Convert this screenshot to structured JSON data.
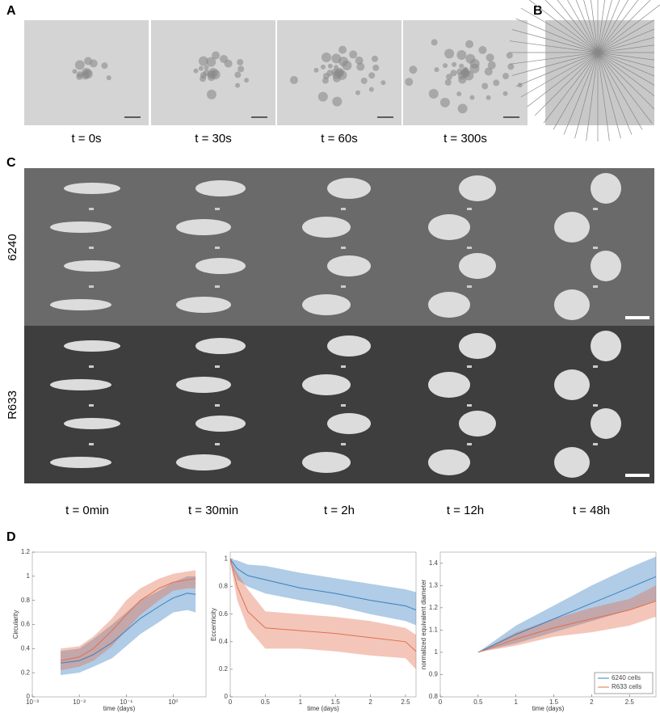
{
  "panels": {
    "A": {
      "label": "A",
      "times": [
        "t = 0s",
        "t = 30s",
        "t = 60s",
        "t = 300s"
      ]
    },
    "B": {
      "label": "B"
    },
    "C": {
      "label": "C",
      "rows": [
        "6240",
        "R633"
      ],
      "times": [
        "t = 0min",
        "t = 30min",
        "t = 2h",
        "t = 12h",
        "t = 48h"
      ]
    },
    "D": {
      "label": "D"
    }
  },
  "chart_data": [
    {
      "type": "line",
      "xlabel": "time (days)",
      "ylabel": "Circularity",
      "xscale": "log",
      "xlim": [
        0.001,
        5
      ],
      "xticks": [
        {
          "value": 0.001,
          "label": "10⁻³"
        },
        {
          "value": 0.01,
          "label": "10⁻²"
        },
        {
          "value": 0.1,
          "label": "10⁻¹"
        },
        {
          "value": 1,
          "label": "10⁰"
        }
      ],
      "ylim": [
        0,
        1.2
      ],
      "yticks": [
        0,
        0.2,
        0.4,
        0.6,
        0.8,
        1,
        1.2
      ],
      "x": [
        0.004,
        0.01,
        0.02,
        0.05,
        0.1,
        0.2,
        0.5,
        1,
        2,
        3
      ],
      "series": [
        {
          "color": "#3a7fc1",
          "values": [
            0.28,
            0.3,
            0.35,
            0.45,
            0.55,
            0.65,
            0.75,
            0.82,
            0.86,
            0.85
          ],
          "lower": [
            0.18,
            0.2,
            0.25,
            0.32,
            0.42,
            0.52,
            0.62,
            0.7,
            0.72,
            0.7
          ],
          "upper": [
            0.38,
            0.4,
            0.48,
            0.6,
            0.7,
            0.8,
            0.88,
            0.95,
            1.0,
            1.0
          ]
        },
        {
          "color": "#e0704f",
          "values": [
            0.3,
            0.33,
            0.4,
            0.55,
            0.68,
            0.8,
            0.9,
            0.95,
            0.97,
            0.98
          ],
          "lower": [
            0.22,
            0.25,
            0.3,
            0.42,
            0.55,
            0.68,
            0.8,
            0.88,
            0.9,
            0.9
          ],
          "upper": [
            0.4,
            0.42,
            0.5,
            0.65,
            0.8,
            0.9,
            0.98,
            1.02,
            1.04,
            1.05
          ]
        }
      ]
    },
    {
      "type": "line",
      "xlabel": "time (days)",
      "ylabel": "Eccentricity",
      "xlim": [
        0,
        2.65
      ],
      "xticks": [
        0,
        0.5,
        1,
        1.5,
        2,
        2.5
      ],
      "ylim": [
        0,
        1.05
      ],
      "yticks": [
        0,
        0.2,
        0.4,
        0.6,
        0.8,
        1
      ],
      "x": [
        0,
        0.1,
        0.25,
        0.5,
        1,
        1.5,
        2,
        2.5,
        2.65
      ],
      "series": [
        {
          "color": "#3a7fc1",
          "values": [
            1.0,
            0.93,
            0.88,
            0.85,
            0.79,
            0.75,
            0.7,
            0.66,
            0.63
          ],
          "lower": [
            0.98,
            0.85,
            0.8,
            0.75,
            0.7,
            0.66,
            0.6,
            0.55,
            0.52
          ],
          "upper": [
            1.0,
            0.99,
            0.96,
            0.95,
            0.9,
            0.86,
            0.82,
            0.78,
            0.76
          ]
        },
        {
          "color": "#e0704f",
          "values": [
            1.0,
            0.8,
            0.62,
            0.5,
            0.48,
            0.46,
            0.43,
            0.4,
            0.33
          ],
          "lower": [
            0.98,
            0.7,
            0.5,
            0.35,
            0.35,
            0.33,
            0.3,
            0.28,
            0.2
          ],
          "upper": [
            1.0,
            0.9,
            0.78,
            0.62,
            0.6,
            0.58,
            0.55,
            0.5,
            0.45
          ]
        }
      ]
    },
    {
      "type": "line",
      "xlabel": "time (days)",
      "ylabel": "normalized equivalent diameter",
      "xlim": [
        0,
        2.85
      ],
      "xticks": [
        0,
        0.5,
        1,
        1.5,
        2,
        2.5
      ],
      "ylim": [
        0.8,
        1.45
      ],
      "yticks": [
        0.8,
        0.9,
        1,
        1.1,
        1.2,
        1.3,
        1.4
      ],
      "legend": "lower right",
      "x": [
        0.5,
        1,
        1.5,
        2,
        2.5,
        2.85
      ],
      "series": [
        {
          "name": "6240 cells",
          "color": "#3a7fc1",
          "values": [
            1,
            1.08,
            1.15,
            1.22,
            1.29,
            1.34
          ],
          "lower": [
            1,
            1.04,
            1.09,
            1.14,
            1.19,
            1.23
          ],
          "upper": [
            1,
            1.12,
            1.21,
            1.3,
            1.38,
            1.43
          ]
        },
        {
          "name": "R633 cells",
          "color": "#e0704f",
          "values": [
            1,
            1.06,
            1.11,
            1.15,
            1.19,
            1.23
          ],
          "lower": [
            1,
            1.03,
            1.07,
            1.09,
            1.12,
            1.16
          ],
          "upper": [
            1,
            1.09,
            1.15,
            1.2,
            1.24,
            1.3
          ]
        }
      ]
    }
  ]
}
